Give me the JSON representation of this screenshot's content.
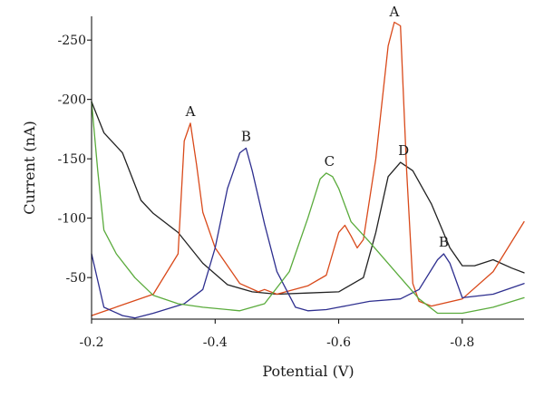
{
  "chart_data": {
    "type": "line",
    "title": "",
    "xlabel": "Potential (V)",
    "ylabel": "Current (nA)",
    "xlim": [
      -0.2,
      -0.9
    ],
    "ylim": [
      -15,
      -270
    ],
    "grid": false,
    "x_ticks": [
      -0.2,
      -0.4,
      -0.6,
      -0.8
    ],
    "x_tick_labels": [
      "-0.2",
      "-0.4",
      "-0.6",
      "-0.8"
    ],
    "y_ticks": [
      -50,
      -100,
      -150,
      -200,
      -250
    ],
    "y_tick_labels": [
      "-50",
      "-100",
      "-150",
      "-200",
      "-250"
    ],
    "series": [
      {
        "color": "#222222",
        "x": [
          -0.2,
          -0.22,
          -0.25,
          -0.28,
          -0.3,
          -0.34,
          -0.38,
          -0.42,
          -0.46,
          -0.5,
          -0.55,
          -0.6,
          -0.64,
          -0.66,
          -0.68,
          -0.7,
          -0.72,
          -0.75,
          -0.78,
          -0.8,
          -0.82,
          -0.85,
          -0.88,
          -0.9
        ],
        "y": [
          -198,
          -172,
          -155,
          -115,
          -104,
          -88,
          -62,
          -44,
          -38,
          -36,
          -37,
          -38,
          -50,
          -88,
          -135,
          -147,
          -140,
          -112,
          -75,
          -60,
          -60,
          -65,
          -58,
          -54
        ]
      },
      {
        "color": "#d9491a",
        "x": [
          -0.2,
          -0.25,
          -0.3,
          -0.34,
          -0.35,
          -0.36,
          -0.37,
          -0.38,
          -0.4,
          -0.44,
          -0.47,
          -0.48,
          -0.5,
          -0.55,
          -0.58,
          -0.6,
          -0.61,
          -0.62,
          -0.63,
          -0.64,
          -0.66,
          -0.68,
          -0.69,
          -0.7,
          -0.71,
          -0.72,
          -0.73,
          -0.75,
          -0.8,
          -0.85,
          -0.9
        ],
        "y": [
          -18,
          -27,
          -36,
          -70,
          -165,
          -180,
          -145,
          -105,
          -75,
          -45,
          -38,
          -40,
          -36,
          -43,
          -52,
          -88,
          -94,
          -85,
          -75,
          -82,
          -150,
          -245,
          -265,
          -262,
          -140,
          -45,
          -30,
          -26,
          -32,
          -55,
          -97
        ]
      },
      {
        "color": "#2e2f8f",
        "x": [
          -0.2,
          -0.22,
          -0.25,
          -0.27,
          -0.3,
          -0.35,
          -0.38,
          -0.4,
          -0.42,
          -0.44,
          -0.45,
          -0.46,
          -0.48,
          -0.5,
          -0.53,
          -0.55,
          -0.58,
          -0.6,
          -0.65,
          -0.7,
          -0.73,
          -0.76,
          -0.77,
          -0.78,
          -0.8,
          -0.85,
          -0.9
        ],
        "y": [
          -70,
          -25,
          -18,
          -16,
          -20,
          -28,
          -40,
          -75,
          -125,
          -155,
          -159,
          -140,
          -95,
          -55,
          -25,
          -22,
          -23,
          -25,
          -30,
          -32,
          -40,
          -65,
          -70,
          -62,
          -33,
          -36,
          -45
        ]
      },
      {
        "color": "#5aab3c",
        "x": [
          -0.2,
          -0.21,
          -0.22,
          -0.24,
          -0.27,
          -0.3,
          -0.34,
          -0.38,
          -0.44,
          -0.48,
          -0.52,
          -0.55,
          -0.57,
          -0.58,
          -0.59,
          -0.6,
          -0.62,
          -0.65,
          -0.7,
          -0.73,
          -0.76,
          -0.8,
          -0.85,
          -0.9
        ],
        "y": [
          -198,
          -140,
          -90,
          -70,
          -50,
          -35,
          -28,
          -25,
          -22,
          -28,
          -55,
          -100,
          -133,
          -138,
          -135,
          -125,
          -97,
          -80,
          -50,
          -32,
          -20,
          -20,
          -25,
          -33
        ]
      }
    ],
    "annotations": [
      {
        "text": "A",
        "x": -0.36,
        "y": -183
      },
      {
        "text": "B",
        "x": -0.45,
        "y": -162
      },
      {
        "text": "C",
        "x": -0.585,
        "y": -141
      },
      {
        "text": "A",
        "x": -0.69,
        "y": -267
      },
      {
        "text": "D",
        "x": -0.705,
        "y": -150
      },
      {
        "text": "B",
        "x": -0.77,
        "y": -73
      }
    ]
  }
}
